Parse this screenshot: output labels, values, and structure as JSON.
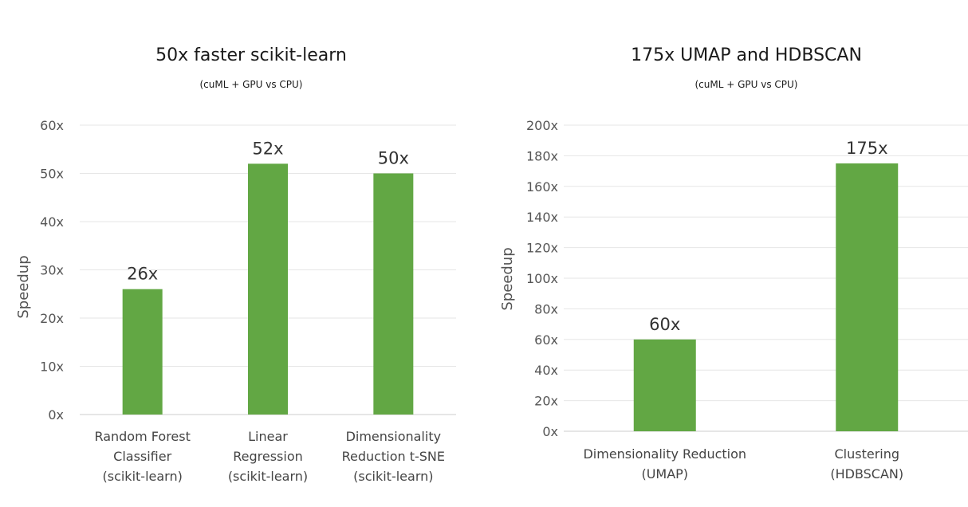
{
  "chart_data": [
    {
      "type": "bar",
      "title": "50x faster scikit-learn",
      "subtitle": "(cuML + GPU vs CPU)",
      "ylabel": "Speedup",
      "xlabel": "",
      "ylim": [
        0,
        60
      ],
      "yticks": [
        "0x",
        "10x",
        "20x",
        "30x",
        "40x",
        "50x",
        "60x"
      ],
      "grid": true,
      "bar_color": "#62a744",
      "categories": [
        [
          "Random Forest",
          "Classifier",
          "(scikit-learn)"
        ],
        [
          "Linear",
          "Regression",
          "(scikit-learn)"
        ],
        [
          "Dimensionality",
          "Reduction t-SNE",
          "(scikit-learn)"
        ]
      ],
      "values": [
        26,
        52,
        50
      ],
      "data_labels": [
        "26x",
        "52x",
        "50x"
      ]
    },
    {
      "type": "bar",
      "title": "175x UMAP and HDBSCAN",
      "subtitle": "(cuML + GPU vs CPU)",
      "ylabel": "Speedup",
      "xlabel": "",
      "ylim": [
        0,
        200
      ],
      "yticks": [
        "0x",
        "20x",
        "40x",
        "60x",
        "80x",
        "100x",
        "120x",
        "140x",
        "160x",
        "180x",
        "200x"
      ],
      "grid": true,
      "bar_color": "#62a744",
      "categories": [
        [
          "Dimensionality Reduction",
          "(UMAP)"
        ],
        [
          "Clustering",
          "(HDBSCAN)"
        ]
      ],
      "values": [
        60,
        175
      ],
      "data_labels": [
        "60x",
        "175x"
      ]
    }
  ]
}
